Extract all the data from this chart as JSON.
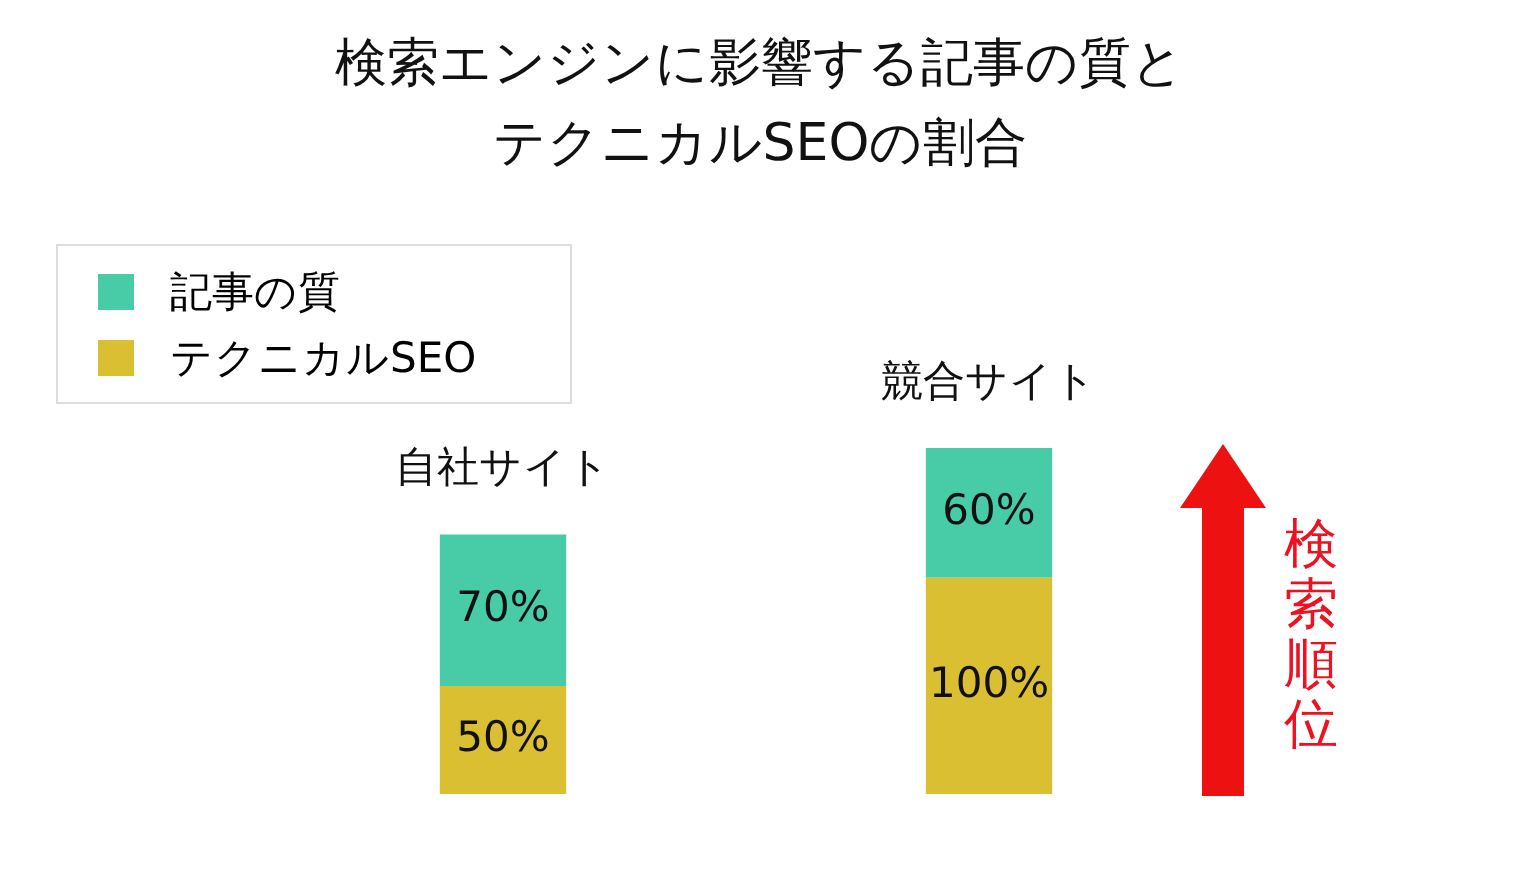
{
  "chart_data": {
    "type": "bar",
    "title": "検索エンジンに影響する記事の質とテクニカルSEOの割合",
    "categories": [
      "自社サイト",
      "競合サイト"
    ],
    "stacked": true,
    "legend": "top left",
    "annotations": [
      "検索順位"
    ],
    "series": [
      {
        "name": "テクニカルSEO",
        "color": "#dbbf33",
        "values": [
          50,
          100
        ],
        "value_labels": [
          "50%",
          "100%"
        ]
      },
      {
        "name": "記事の質",
        "color": "#48cca8",
        "values": [
          70,
          60
        ],
        "value_labels": [
          "70%",
          "60%"
        ]
      }
    ]
  }
}
